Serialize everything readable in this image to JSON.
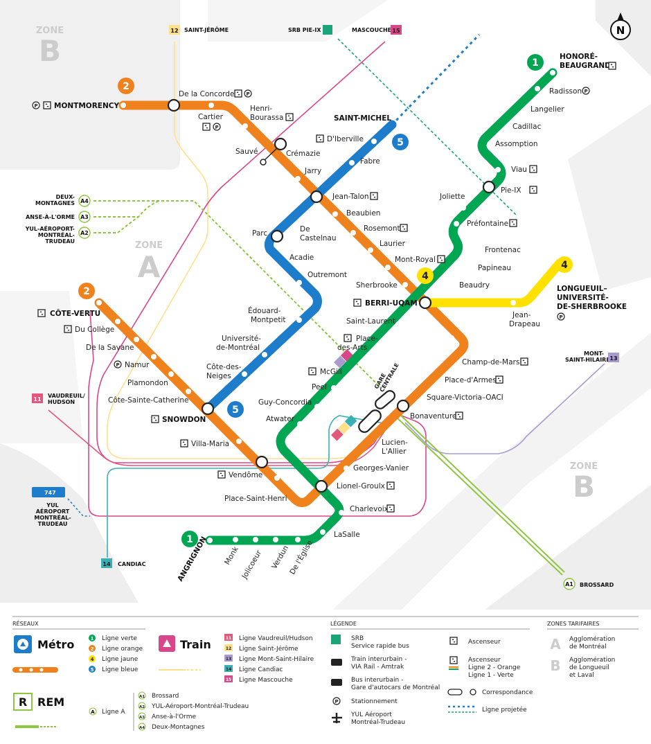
{
  "zones": {
    "b_top": "ZONE",
    "b_top_letter": "B",
    "a": "ZONE",
    "a_letter": "A",
    "b_right": "ZONE",
    "b_right_letter": "B"
  },
  "compass": "N",
  "colors": {
    "green": "#00a651",
    "orange": "#f0821e",
    "yellow": "#ffe100",
    "blue": "#1e7dcb",
    "rem": "#8dc63f",
    "mascouche": "#d9478b",
    "stjerome": "#ffe08a",
    "vaudreuil": "#e2577a",
    "candiac": "#3ab0b4",
    "mtsthilaire": "#a99bd0",
    "srb": "#1aa47a"
  },
  "lines": {
    "g": "1",
    "o": "2",
    "y": "4",
    "b": "5"
  },
  "terminals": {
    "honore": "HONORÉ-\nBEAUGRAND",
    "montmorency": "MONTMORENCY",
    "cote_vertu": "CÔTE-VERTU",
    "angrignon": "ANGRIGNON",
    "saint_michel": "SAINT-MICHEL",
    "longueuil": "LONGUEUIL–\nUNIVERSITÉ-\nDE-SHERBROOKE",
    "berri": "BERRI-UQAM",
    "snowdon": "SNOWDON"
  },
  "stations": {
    "radisson": "Radisson",
    "langelier": "Langelier",
    "cadillac": "Cadillac",
    "assomption": "Assomption",
    "viau": "Viau",
    "pieix": "Pie-IX",
    "joliette": "Joliette",
    "prefontaine": "Préfontaine",
    "frontenac": "Frontenac",
    "papineau": "Papineau",
    "beaudry": "Beaudry",
    "sl": "Saint-Laurent",
    "pda": "Place-\ndes-Arts",
    "mcgill": "McGill",
    "peel": "Peel",
    "guy": "Guy-Concordia",
    "atwater": "Atwater",
    "lionel": "Lionel-Groulx",
    "charlevoix": "Charlevoix",
    "lasalle": "LaSalle",
    "eglise": "De l'Église",
    "verdun": "Verdun",
    "jolicoeur": "Jolicoeur",
    "monk": "Monk",
    "concorde": "De la Concorde",
    "cartier": "Cartier",
    "henri": "Henri-\nBourassa",
    "sauve": "Sauvé",
    "cremazie": "Crémazie",
    "jarry": "Jarry",
    "jt": "Jean-Talon",
    "beaubien": "Beaubien",
    "rosemont": "Rosemont",
    "laurier": "Laurier",
    "mr": "Mont-Royal",
    "sherbrooke": "Sherbrooke",
    "cdm": "Champ-de-Mars",
    "pda2": "Place-d'Armes",
    "svo": "Square-Victoria–OACI",
    "bonav": "Bonaventure",
    "lucien": "Lucien-\nL'Allier",
    "gv": "Georges-Vanier",
    "psh": "Place-Saint-Henri",
    "vendome": "Vendôme",
    "vm": "Villa-Maria",
    "csc": "Côte-Sainte-Catherine",
    "plamondon": "Plamondon",
    "namur": "Namur",
    "savane": "De la Savane",
    "college": "Du Collège",
    "diberville": "D'Iberville",
    "fabre": "Fabre",
    "castelnau": "De\nCastelnau",
    "parc": "Parc",
    "acadie": "Acadie",
    "outremont": "Outremont",
    "em": "Édouard-\nMontpetit",
    "udm": "Université-\nde-Montréal",
    "cdn": "Côte-des-\nNeiges",
    "jd": "Jean-\nDrapeau",
    "gare": "GARE\nCENTRALE"
  },
  "trains": {
    "stjerome": "SAINT-JÉRÔME",
    "stjerome_n": "12",
    "srb": "SRB PIE-IX",
    "mascouche": "MASCOUCHE",
    "mascouche_n": "15",
    "mtsthilaire": "MONT-\nSAINT-HILAIRE",
    "mtsthilaire_n": "13",
    "vaudreuil": "VAUDREUIL/\nHUDSON",
    "vaudreuil_n": "11",
    "candiac": "CANDIAC",
    "candiac_n": "14",
    "bus": "747",
    "yul": "YUL\nAÉROPORT\nMONTRÉAL-\nTRUDEAU"
  },
  "rem": {
    "a4": "A4",
    "a4_label": "DEUX-\nMONTAGNES",
    "a3": "A3",
    "a3_label": "ANSE-À-L'ORME",
    "a2": "A2",
    "a2_label": "YUL-AÉROPORT-\nMONTRÉAL-\nTRUDEAU",
    "a1": "A1",
    "a1_label": "BROSSARD"
  },
  "legend": {
    "reseaux_title": "RÉSEAUX",
    "metro": "Métro",
    "metro_lines": [
      {
        "n": "1",
        "t": "Ligne verte",
        "c": "#00a651"
      },
      {
        "n": "2",
        "t": "Ligne orange",
        "c": "#f0821e"
      },
      {
        "n": "4",
        "t": "Ligne jaune",
        "c": "#ffe100"
      },
      {
        "n": "5",
        "t": "Ligne bleue",
        "c": "#1e7dcb"
      }
    ],
    "train": "Train",
    "train_lines": [
      {
        "n": "11",
        "t": "Ligne Vaudreuil/Hudson",
        "c": "#e2577a"
      },
      {
        "n": "12",
        "t": "Ligne Saint-Jérôme",
        "c": "#ffe08a"
      },
      {
        "n": "13",
        "t": "Ligne Mont-Saint-Hilaire",
        "c": "#a99bd0"
      },
      {
        "n": "14",
        "t": "Ligne Candiac",
        "c": "#3ab0b4"
      },
      {
        "n": "15",
        "t": "Ligne Mascouche",
        "c": "#d9478b"
      }
    ],
    "rem": "REM",
    "rem_a": "Ligne A",
    "rem_a_n": "A",
    "rem_lines": [
      {
        "n": "A1",
        "t": "Brossard"
      },
      {
        "n": "A2",
        "t": "YUL-Aéroport-Montréal-Trudeau"
      },
      {
        "n": "A3",
        "t": "Anse-à-l'Orme"
      },
      {
        "n": "A4",
        "t": "Deux-Montagnes"
      }
    ],
    "legende_title": "LÉGENDE",
    "srb": "SRB\nService rapide bus",
    "via": "Train interurbain -\nVIA Rail - Amtrak",
    "bus": "Bus interurbain -\nGare d'autocars de Montréal",
    "park": "Stationnement",
    "yul": "YUL Aéroport\nMontréal-Trudeau",
    "asc": "Ascenseur",
    "asc2": "Ascenseur\nLigne 2 - Orange\nLigne 1 - Verte",
    "corr": "Correspondance",
    "proj": "Ligne projetée",
    "zones_title": "ZONES TARIFAIRES",
    "za": "A",
    "za_t": "Agglomération\nde Montréal",
    "zb": "B",
    "zb_t": "Agglomération\nde Longueuil\net Laval"
  }
}
